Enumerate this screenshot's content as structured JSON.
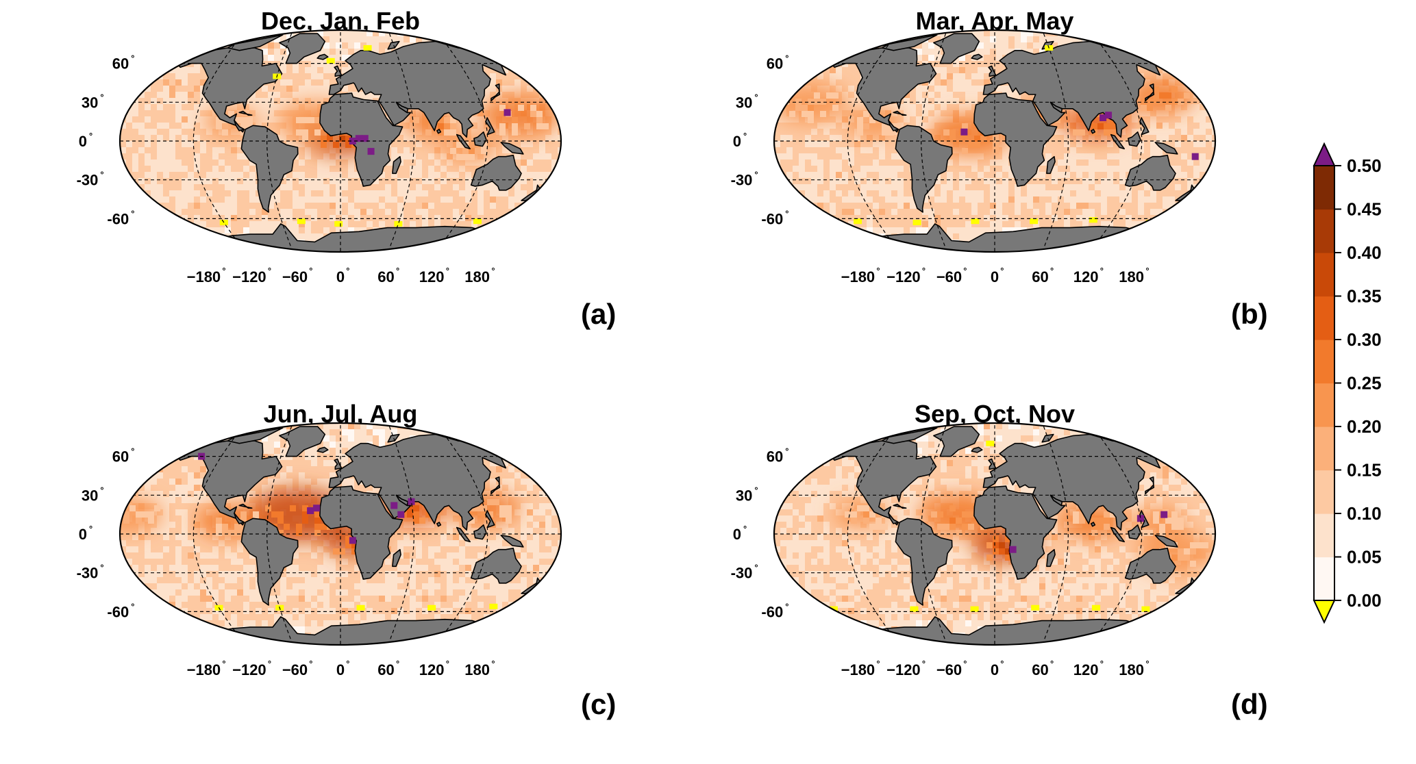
{
  "figure": {
    "panels": [
      {
        "id": "a",
        "title": "Dec, Jan, Feb",
        "letter": "(a)",
        "hotspots": [
          {
            "lon": 0,
            "lat": 5,
            "intensity": 0.36,
            "r": 14
          },
          {
            "lon": 75,
            "lat": 15,
            "intensity": 0.3,
            "r": 10
          },
          {
            "lon": 150,
            "lat": 20,
            "intensity": 0.25,
            "r": 14
          },
          {
            "lon": -20,
            "lat": 15,
            "intensity": 0.22,
            "r": 14
          },
          {
            "lon": -90,
            "lat": 15,
            "intensity": 0.2,
            "r": 10
          },
          {
            "lon": 105,
            "lat": -5,
            "intensity": 0.2,
            "r": 10
          }
        ],
        "purple_cells": [
          [
            15,
            2
          ],
          [
            20,
            2
          ],
          [
            10,
            0
          ],
          [
            25,
            -8
          ],
          [
            140,
            22
          ]
        ],
        "yellow_cells": [
          [
            -10,
            62
          ],
          [
            -60,
            50
          ],
          [
            -2,
            -64
          ],
          [
            60,
            -64
          ],
          [
            -120,
            -63
          ],
          [
            -40,
            -62
          ],
          [
            140,
            -62
          ],
          [
            30,
            72
          ]
        ]
      },
      {
        "id": "b",
        "title": "Mar, Apr, May",
        "letter": "(b)",
        "hotspots": [
          {
            "lon": -20,
            "lat": 5,
            "intensity": 0.3,
            "r": 14
          },
          {
            "lon": 85,
            "lat": 15,
            "intensity": 0.32,
            "r": 12
          },
          {
            "lon": 145,
            "lat": 35,
            "intensity": 0.3,
            "r": 12
          },
          {
            "lon": -160,
            "lat": 30,
            "intensity": 0.22,
            "r": 14
          },
          {
            "lon": -100,
            "lat": 15,
            "intensity": 0.22,
            "r": 10
          },
          {
            "lon": 40,
            "lat": 22,
            "intensity": 0.28,
            "r": 8
          }
        ],
        "purple_cells": [
          [
            90,
            18
          ],
          [
            95,
            20
          ],
          [
            -25,
            7
          ],
          [
            165,
            -12
          ]
        ],
        "yellow_cells": [
          [
            -20,
            -62
          ],
          [
            40,
            -62
          ],
          [
            100,
            -61
          ],
          [
            -80,
            -63
          ],
          [
            -140,
            -62
          ],
          [
            160,
            -63
          ],
          [
            60,
            72
          ]
        ]
      },
      {
        "id": "c",
        "title": "Jun, Jul, Aug",
        "letter": "(c)",
        "hotspots": [
          {
            "lon": -35,
            "lat": 15,
            "intensity": 0.36,
            "r": 18
          },
          {
            "lon": 10,
            "lat": -5,
            "intensity": 0.36,
            "r": 10
          },
          {
            "lon": 60,
            "lat": 20,
            "intensity": 0.35,
            "r": 12
          },
          {
            "lon": 120,
            "lat": 20,
            "intensity": 0.25,
            "r": 12
          },
          {
            "lon": -175,
            "lat": 15,
            "intensity": 0.22,
            "r": 12
          },
          {
            "lon": -90,
            "lat": 10,
            "intensity": 0.25,
            "r": 12
          }
        ],
        "purple_cells": [
          [
            -25,
            18
          ],
          [
            -20,
            20
          ],
          [
            10,
            -5
          ],
          [
            45,
            22
          ],
          [
            50,
            15
          ],
          [
            60,
            25
          ],
          [
            -140,
            60
          ]
        ],
        "yellow_cells": [
          [
            -60,
            -57
          ],
          [
            20,
            -57
          ],
          [
            90,
            -57
          ],
          [
            150,
            -56
          ],
          [
            -120,
            -57
          ]
        ]
      },
      {
        "id": "d",
        "title": "Sep, Oct, Nov",
        "letter": "(d)",
        "hotspots": [
          {
            "lon": 10,
            "lat": -8,
            "intensity": 0.38,
            "r": 12
          },
          {
            "lon": -30,
            "lat": 15,
            "intensity": 0.3,
            "r": 14
          },
          {
            "lon": 80,
            "lat": 10,
            "intensity": 0.27,
            "r": 12
          },
          {
            "lon": 150,
            "lat": -15,
            "intensity": 0.22,
            "r": 14
          },
          {
            "lon": 135,
            "lat": 10,
            "intensity": 0.22,
            "r": 10
          },
          {
            "lon": -110,
            "lat": 15,
            "intensity": 0.2,
            "r": 10
          }
        ],
        "purple_cells": [
          [
            15,
            -12
          ],
          [
            120,
            12
          ],
          [
            140,
            15
          ]
        ],
        "yellow_cells": [
          [
            -20,
            -58
          ],
          [
            40,
            -57
          ],
          [
            100,
            -57
          ],
          [
            -80,
            -58
          ],
          [
            150,
            -58
          ],
          [
            -160,
            -58
          ],
          [
            -5,
            70
          ]
        ]
      }
    ],
    "lat_ticks": [
      "60",
      "30",
      "0",
      "-30",
      "-60"
    ],
    "lat_values": [
      60,
      30,
      0,
      -30,
      -60
    ],
    "lon_ticks": [
      "−180",
      "−120",
      "−60",
      "0",
      "60",
      "120",
      "180"
    ],
    "lon_values": [
      -180,
      -120,
      -60,
      0,
      60,
      120,
      180
    ],
    "degree_symbol": "°",
    "colorbar": {
      "ticks": [
        "0.50",
        "0.45",
        "0.40",
        "0.35",
        "0.30",
        "0.25",
        "0.20",
        "0.15",
        "0.10",
        "0.05",
        "0.00"
      ],
      "colors": [
        "#fff8f3",
        "#fde2cc",
        "#fdc9a2",
        "#fbb07a",
        "#f8954f",
        "#f27a2c",
        "#e45e14",
        "#c94908",
        "#a83a06",
        "#7e2a04"
      ],
      "over_color": "#7c1c86",
      "under_color": "#ffff00"
    },
    "land_color": "#787878",
    "ocean_base_color": "#fde5d2"
  }
}
